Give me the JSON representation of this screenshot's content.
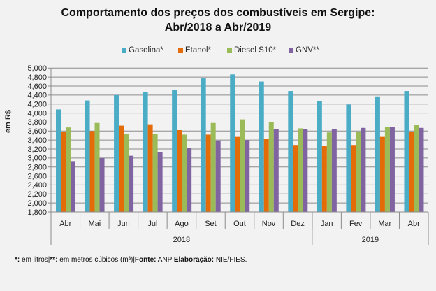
{
  "chart_data": {
    "type": "bar",
    "title": [
      "Comportamento dos preços dos combustíveis em Sergipe:",
      "Abr/2018 a Abr/2019"
    ],
    "xlabel": "",
    "ylabel": "em R$",
    "ylim": [
      1800,
      5000
    ],
    "yticks": [
      1800,
      2000,
      2200,
      2400,
      2600,
      2800,
      3000,
      3200,
      3400,
      3600,
      3800,
      4000,
      4200,
      4400,
      4600,
      4800,
      5000
    ],
    "ytick_labels": [
      "1,800",
      "2,000",
      "2,200",
      "2,400",
      "2,600",
      "2,800",
      "3,000",
      "3,200",
      "3,400",
      "3,600",
      "3,800",
      "4,000",
      "4,200",
      "4,400",
      "4,600",
      "4,800",
      "5,000"
    ],
    "grid": true,
    "legend_position": "top",
    "categories": [
      "Abr",
      "Mai",
      "Jun",
      "Jul",
      "Ago",
      "Set",
      "Out",
      "Nov",
      "Dez",
      "Jan",
      "Fev",
      "Mar",
      "Abr"
    ],
    "category_groups": [
      {
        "label": "2018",
        "count": 9
      },
      {
        "label": "2019",
        "count": 4
      }
    ],
    "series": [
      {
        "name": "Gasolina*",
        "color": "#4bacc6",
        "values": [
          4080,
          4280,
          4400,
          4470,
          4520,
          4770,
          4860,
          4700,
          4490,
          4260,
          4190,
          4370,
          4490
        ]
      },
      {
        "name": "Etanol*",
        "color": "#e36c09",
        "values": [
          3580,
          3600,
          3720,
          3750,
          3620,
          3520,
          3470,
          3420,
          3290,
          3270,
          3290,
          3470,
          3590
        ]
      },
      {
        "name": "Diesel S10*",
        "color": "#9bbb59",
        "values": [
          3680,
          3780,
          3540,
          3530,
          3520,
          3780,
          3860,
          3800,
          3660,
          3570,
          3590,
          3690,
          3740
        ]
      },
      {
        "name": "GNV**",
        "color": "#8064a2",
        "values": [
          2930,
          3000,
          3050,
          3130,
          3220,
          3390,
          3400,
          3650,
          3640,
          3640,
          3670,
          3690,
          3670
        ]
      }
    ]
  },
  "footnote": {
    "part1_bold": "*:",
    "part1": " em litros|",
    "part2_bold": "**:",
    "part2": " em metros cúbicos (m³)|",
    "part3_bold": "Fonte:",
    "part3": " ANP|",
    "part4_bold": "Elaboração:",
    "part4": " NIE/FIES."
  }
}
